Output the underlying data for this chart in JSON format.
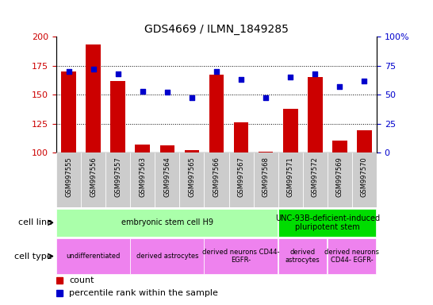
{
  "title": "GDS4669 / ILMN_1849285",
  "samples": [
    "GSM997555",
    "GSM997556",
    "GSM997557",
    "GSM997563",
    "GSM997564",
    "GSM997565",
    "GSM997566",
    "GSM997567",
    "GSM997568",
    "GSM997571",
    "GSM997572",
    "GSM997569",
    "GSM997570"
  ],
  "counts": [
    170,
    193,
    162,
    107,
    106,
    102,
    167,
    126,
    101,
    138,
    165,
    110,
    119
  ],
  "percentile": [
    70,
    72,
    68,
    53,
    52,
    47,
    70,
    63,
    47,
    65,
    68,
    57,
    62
  ],
  "bar_color": "#cc0000",
  "dot_color": "#0000cc",
  "ylim_left": [
    100,
    200
  ],
  "ylim_right": [
    0,
    100
  ],
  "yticks_left": [
    100,
    125,
    150,
    175,
    200
  ],
  "yticks_right": [
    0,
    25,
    50,
    75,
    100
  ],
  "ytick_right_labels": [
    "0",
    "25",
    "50",
    "75",
    "100%"
  ],
  "cell_line_groups": [
    {
      "label": "embryonic stem cell H9",
      "start": 0,
      "end": 8,
      "color": "#aaffaa"
    },
    {
      "label": "UNC-93B-deficient-induced\npluripotent stem",
      "start": 9,
      "end": 12,
      "color": "#00dd00"
    }
  ],
  "cell_type_groups": [
    {
      "label": "undifferentiated",
      "start": 0,
      "end": 2,
      "color": "#ee82ee"
    },
    {
      "label": "derived astrocytes",
      "start": 3,
      "end": 5,
      "color": "#ee82ee"
    },
    {
      "label": "derived neurons CD44-\nEGFR-",
      "start": 6,
      "end": 8,
      "color": "#ee82ee"
    },
    {
      "label": "derived\nastrocytes",
      "start": 9,
      "end": 10,
      "color": "#ee82ee"
    },
    {
      "label": "derived neurons\nCD44- EGFR-",
      "start": 11,
      "end": 12,
      "color": "#ee82ee"
    }
  ],
  "tick_color_left": "#cc0000",
  "tick_color_right": "#0000cc",
  "legend_items": [
    {
      "color": "#cc0000",
      "label": "count"
    },
    {
      "color": "#0000cc",
      "label": "percentile rank within the sample"
    }
  ]
}
